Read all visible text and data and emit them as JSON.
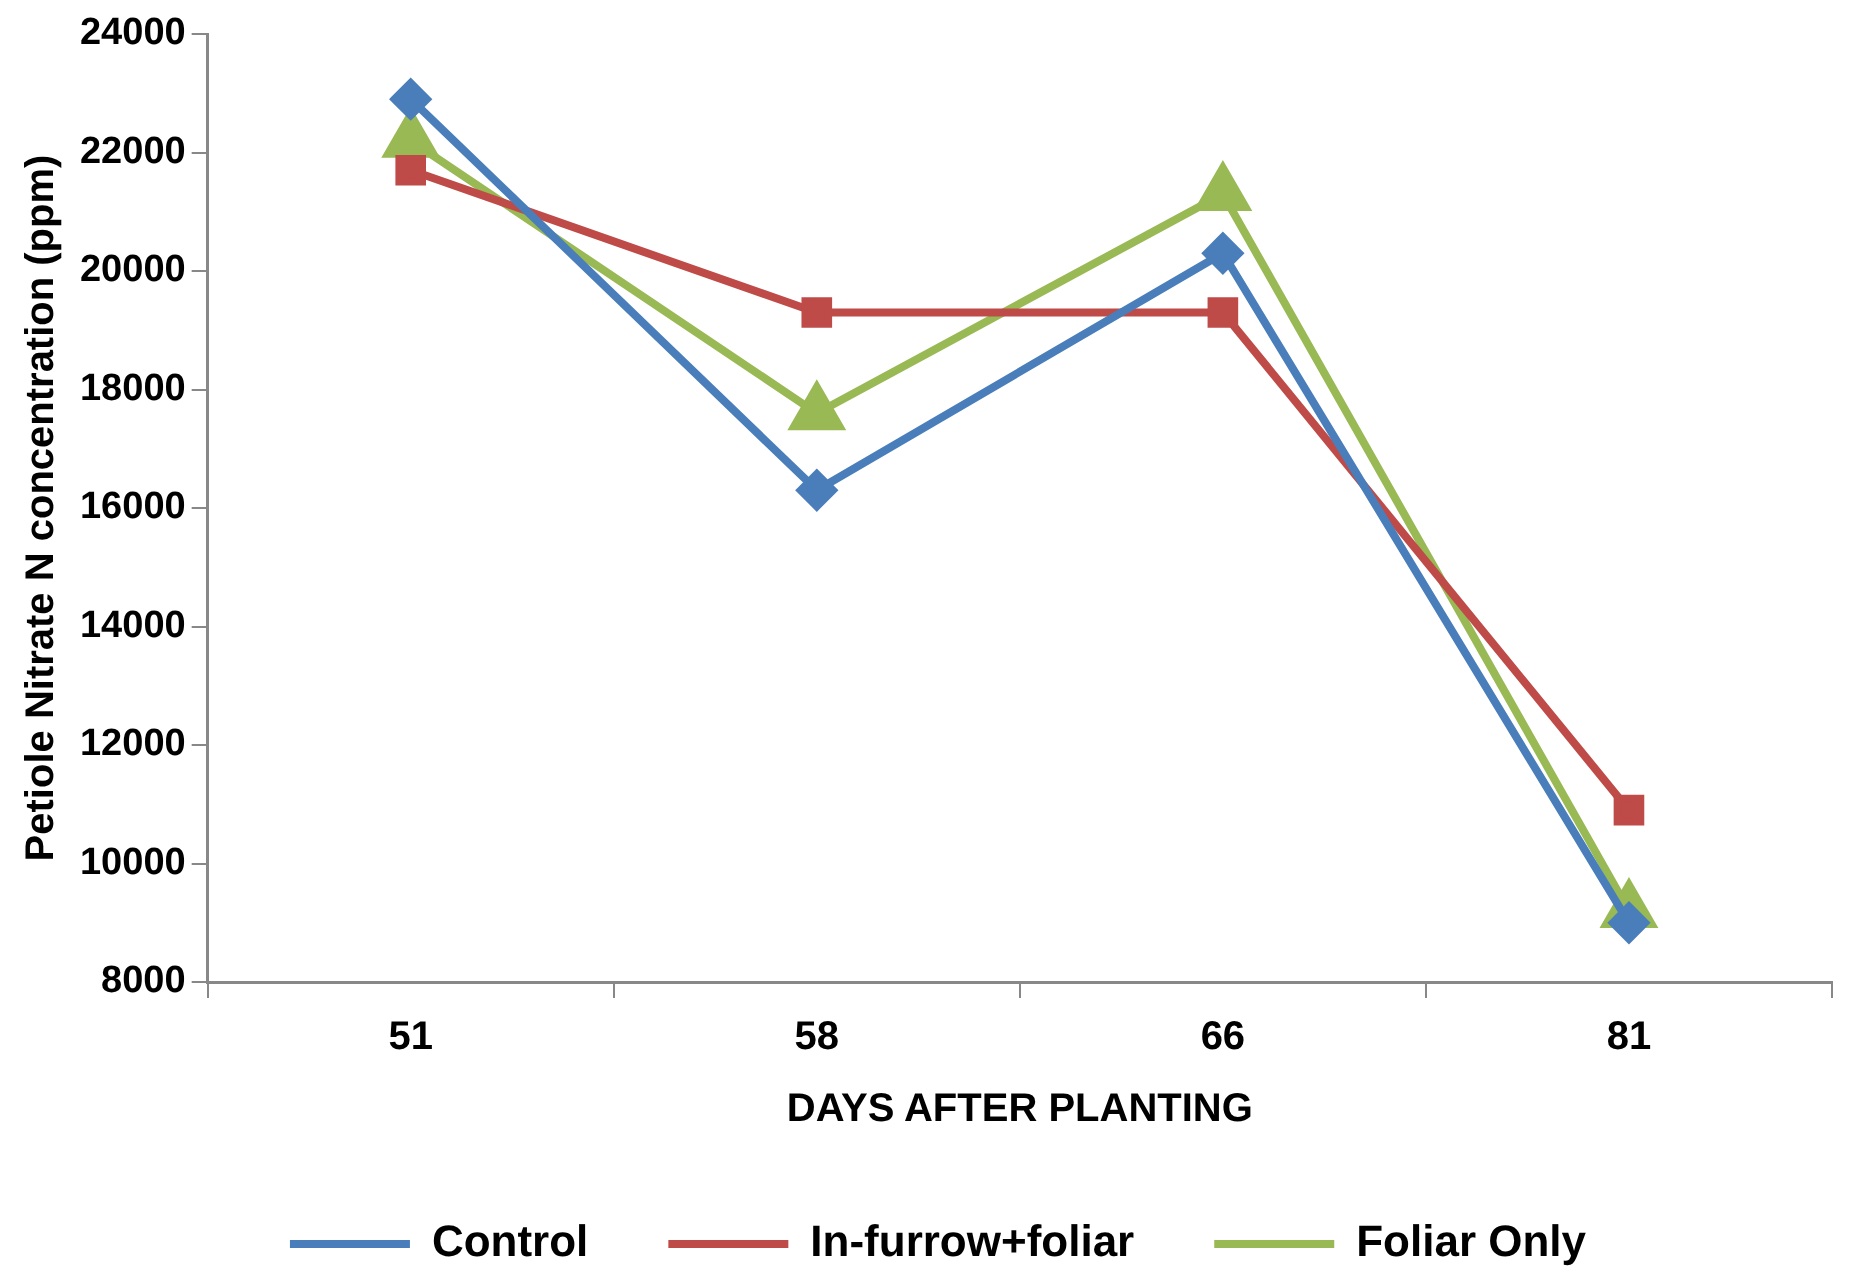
{
  "chart_data": {
    "type": "line",
    "xlabel": "DAYS AFTER PLANTING",
    "ylabel": "Petiole Nitrate N concentration (ppm)",
    "categories": [
      "51",
      "58",
      "66",
      "81"
    ],
    "series": [
      {
        "name": "Control",
        "color": "#4a7ebb",
        "marker": "diamond",
        "values": [
          22900,
          16300,
          20300,
          9000
        ]
      },
      {
        "name": "In-furrow+foliar",
        "color": "#be4b48",
        "marker": "square",
        "values": [
          21700,
          19300,
          19300,
          10900
        ]
      },
      {
        "name": "Foliar Only",
        "color": "#98b954",
        "marker": "triangle",
        "values": [
          22200,
          17600,
          21300,
          9200
        ]
      }
    ],
    "ylim": [
      8000,
      24000
    ],
    "yticks": [
      8000,
      10000,
      12000,
      14000,
      16000,
      18000,
      20000,
      22000,
      24000
    ],
    "grid": false,
    "legend": "bottom",
    "line_style": "solid"
  }
}
